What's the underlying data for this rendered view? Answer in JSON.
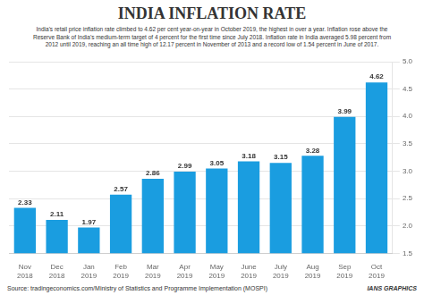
{
  "chart_data": {
    "type": "bar",
    "title": "INDIA INFLATION RATE",
    "subtitle": "India's retail price inflation rate climbed to 4.62 per cent year-on-year in October 2019, the highest in over a year. Inflation rose above the\nReserve Bank of India's medium-term target of 4 percent for the first time since July 2018. Inflation rate in India averaged 5.98 percent from\n2012 until 2019, reaching an all time high of 12.17 percent in November of 2013 and a record low of 1.54 percent in June of 2017.",
    "categories": [
      "Nov\n2018",
      "Dec\n2018",
      "Jan\n2019",
      "Feb\n2019",
      "Mar\n2019",
      "Apr\n2019",
      "May\n2019",
      "June\n2019",
      "July\n2019",
      "Aug\n2019",
      "Sep\n2019",
      "Oct\n2019"
    ],
    "values": [
      2.33,
      2.11,
      1.97,
      2.57,
      2.86,
      2.99,
      3.05,
      3.18,
      3.15,
      3.28,
      3.99,
      4.62
    ],
    "color": "#1a9de0",
    "ylim": [
      1.5,
      5.0
    ],
    "yticks": [
      1.5,
      {
        "value": 2,
        "label": "2.0"
      },
      2.5,
      {
        "value": 3,
        "label": "3.0"
      },
      3.5,
      {
        "value": 4,
        "label": "4.0"
      },
      4.5,
      {
        "value": 5,
        "label": "5.0"
      }
    ],
    "grid": true,
    "data_labels": true,
    "annotations": [
      "Source: tradingeconomics.com/Ministry of Statistics and Programme Implementation (MOSPI)",
      "IANS GRAPHICS"
    ]
  }
}
